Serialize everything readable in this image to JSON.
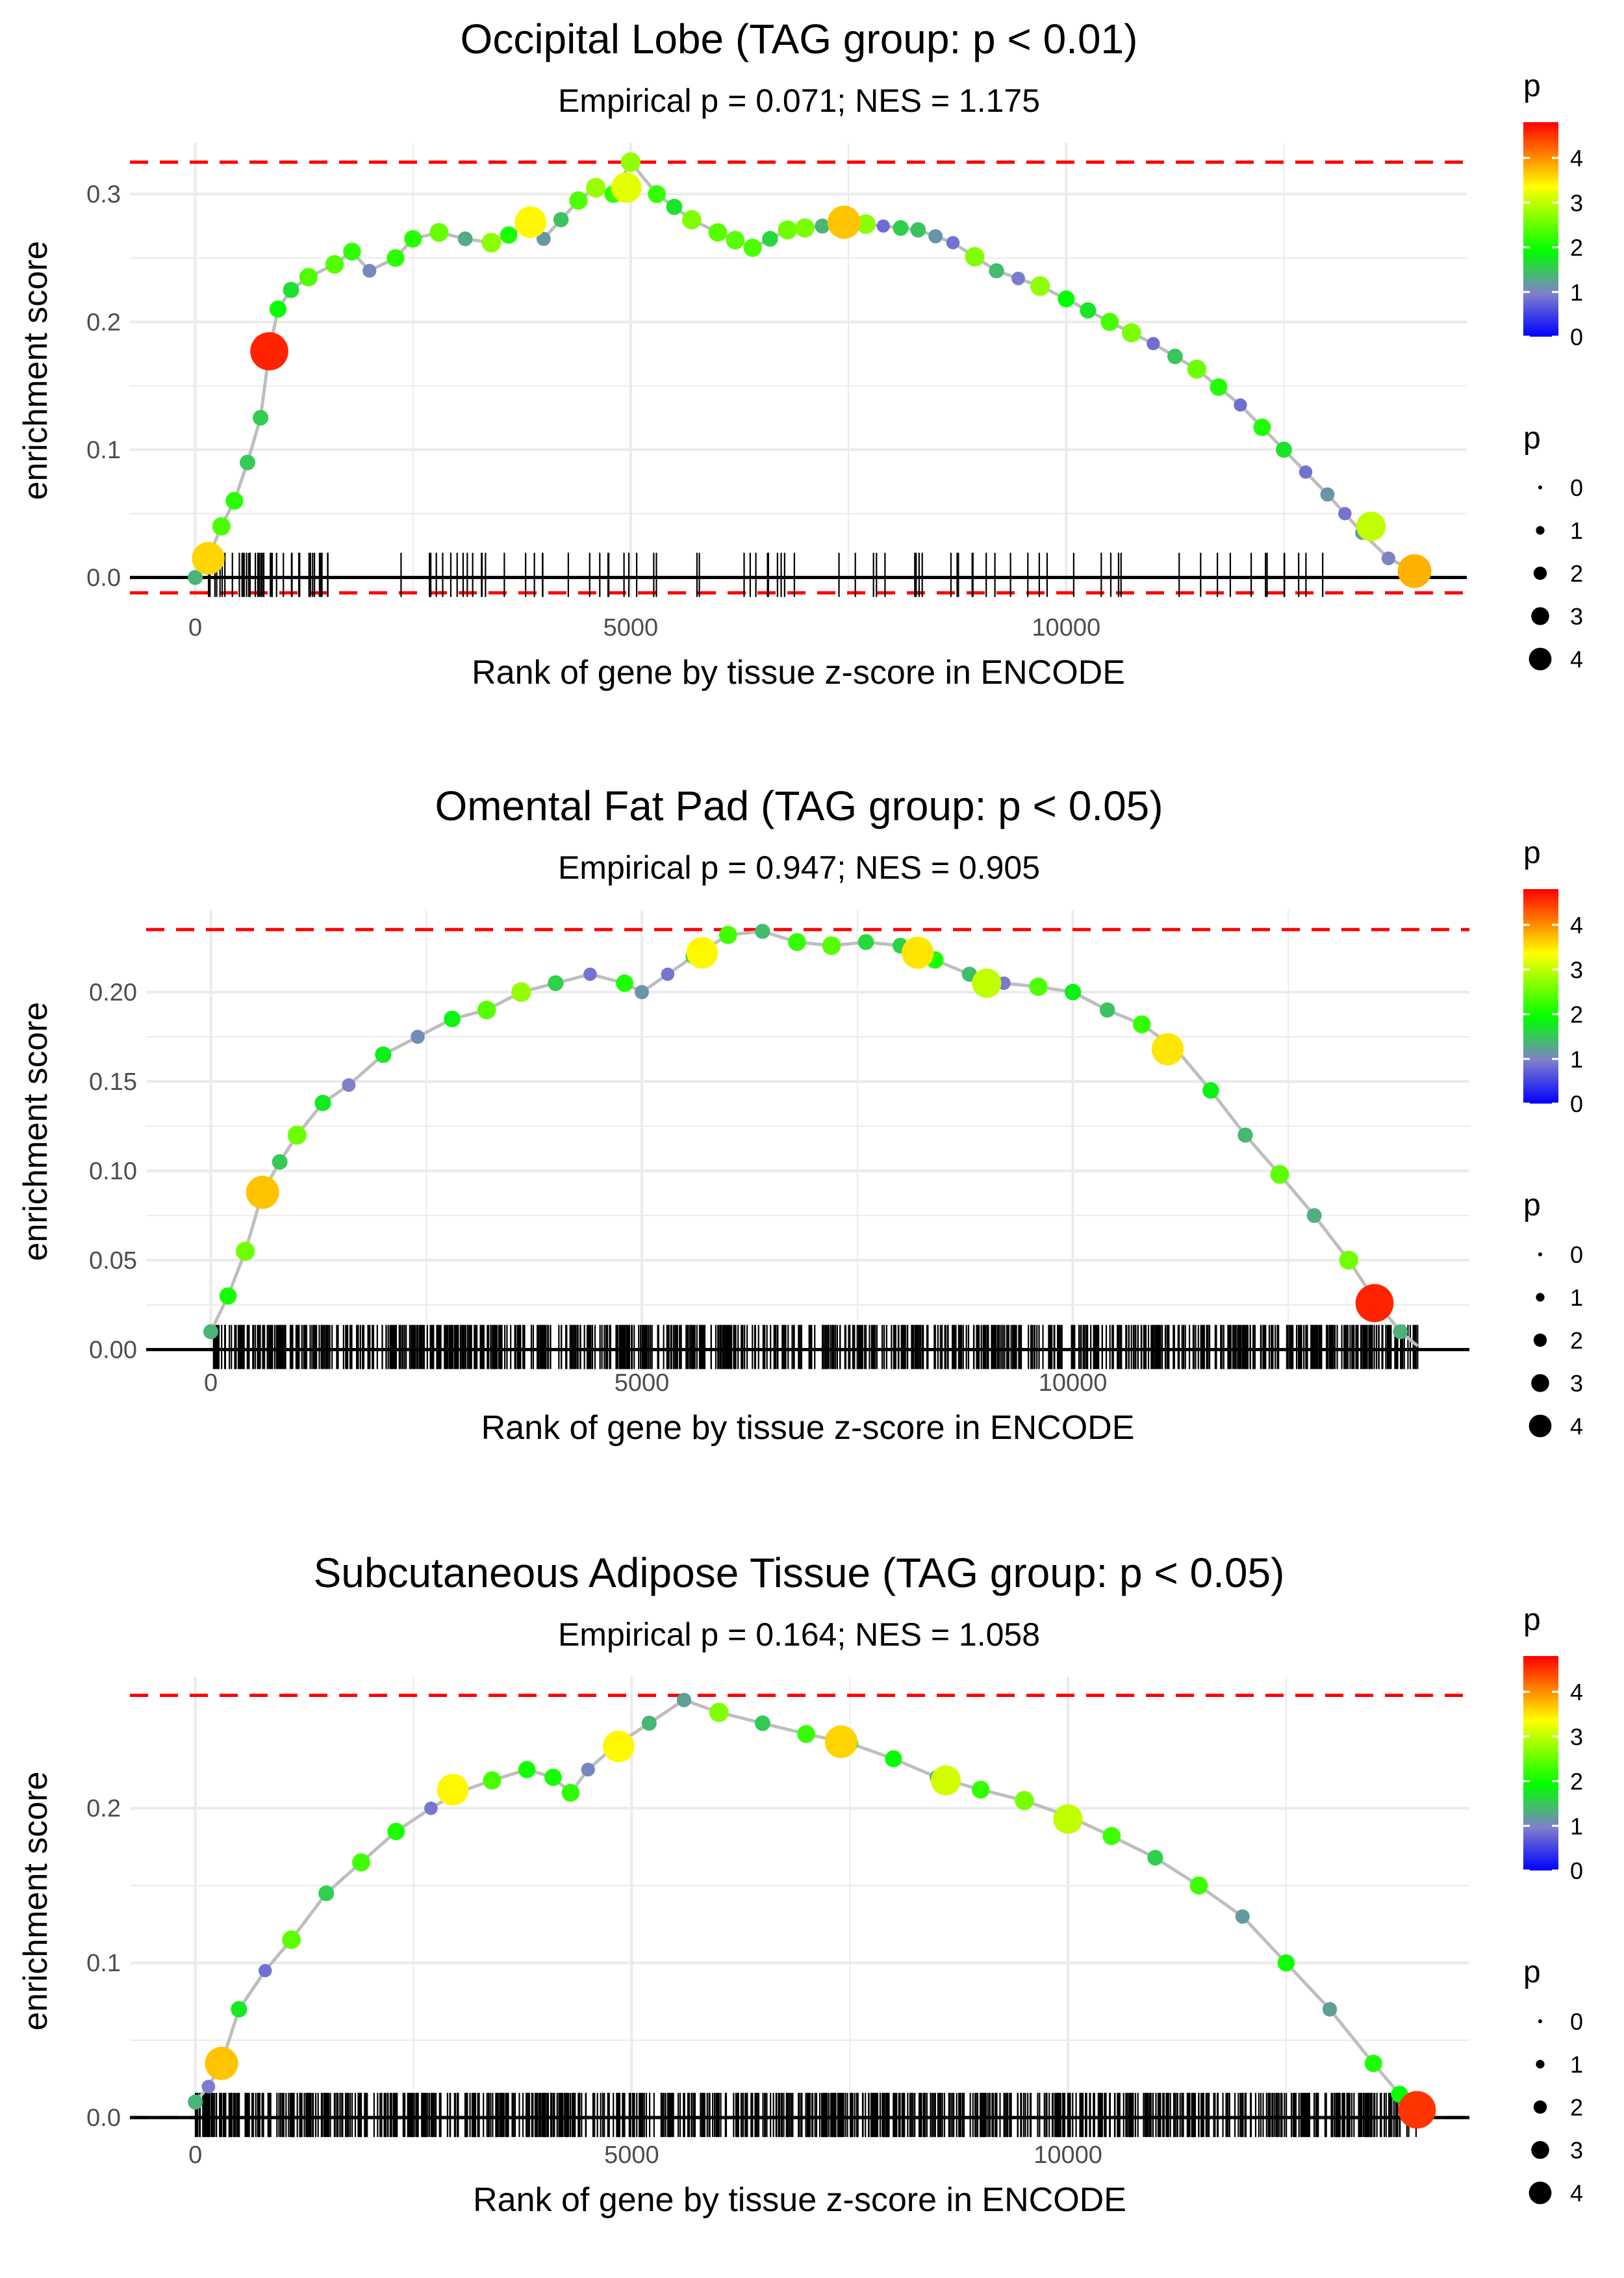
{
  "colors": {
    "gradient": [
      "#0000ff",
      "#7f7fcc",
      "#00ff00",
      "#ffff00",
      "#ff0000"
    ],
    "line": "#bebebe",
    "threshold": "#ff0000",
    "baseline": "#000000",
    "rug": "#000000",
    "grid": "#ebebeb"
  },
  "chart_data": [
    {
      "type": "scatter",
      "title": "Occipital Lobe (TAG group: p < 0.01)",
      "subtitle": "Empirical p = 0.071; NES = 1.175",
      "xlabel": "Rank of gene by tissue z-score in ENCODE",
      "ylabel": "enrichment score",
      "xlim": [
        -750,
        14600
      ],
      "ylim": [
        -0.016,
        0.34
      ],
      "xticks": [
        0,
        5000,
        10000
      ],
      "xtick_labels": [
        "0",
        "5000",
        "10000"
      ],
      "yticks": [
        0,
        0.1,
        0.2,
        0.3
      ],
      "ytick_labels": [
        "0.0",
        "0.1",
        "0.2",
        "0.3"
      ],
      "hlines": [
        0.325,
        -0.012
      ],
      "legend": {
        "color_title": "p",
        "size_title": "p",
        "color_labels": [
          "4",
          "3",
          "2",
          "1",
          "0"
        ],
        "size_labels": [
          "0",
          "1",
          "2",
          "3",
          "4"
        ]
      },
      "curve": [
        [
          0,
          0
        ],
        [
          150,
          0.015
        ],
        [
          300,
          0.04
        ],
        [
          450,
          0.06
        ],
        [
          600,
          0.09
        ],
        [
          750,
          0.125
        ],
        [
          850,
          0.177
        ],
        [
          950,
          0.21
        ],
        [
          1100,
          0.225
        ],
        [
          1300,
          0.235
        ],
        [
          1600,
          0.245
        ],
        [
          1800,
          0.255
        ],
        [
          2000,
          0.24
        ],
        [
          2300,
          0.25
        ],
        [
          2500,
          0.265
        ],
        [
          2800,
          0.27
        ],
        [
          3100,
          0.265
        ],
        [
          3400,
          0.262
        ],
        [
          3600,
          0.268
        ],
        [
          3800,
          0.275
        ],
        [
          4000,
          0.265
        ],
        [
          4200,
          0.28
        ],
        [
          4400,
          0.295
        ],
        [
          4600,
          0.305
        ],
        [
          4800,
          0.3
        ],
        [
          5000,
          0.325
        ],
        [
          5300,
          0.3
        ],
        [
          5700,
          0.28
        ],
        [
          6000,
          0.27
        ],
        [
          6400,
          0.258
        ],
        [
          6800,
          0.272
        ],
        [
          7200,
          0.275
        ],
        [
          7500,
          0.278
        ],
        [
          7900,
          0.275
        ],
        [
          8300,
          0.272
        ],
        [
          8700,
          0.262
        ],
        [
          9200,
          0.24
        ],
        [
          9700,
          0.228
        ],
        [
          10000,
          0.218
        ],
        [
          10500,
          0.2
        ],
        [
          11000,
          0.183
        ],
        [
          11500,
          0.163
        ],
        [
          12000,
          0.135
        ],
        [
          12500,
          0.1
        ],
        [
          13000,
          0.065
        ],
        [
          13400,
          0.035
        ],
        [
          13700,
          0.015
        ],
        [
          14000,
          0.005
        ]
      ],
      "highlights": [
        [
          150,
          0.015,
          3.6
        ],
        [
          850,
          0.177,
          4.6
        ],
        [
          3850,
          0.278,
          3.4
        ],
        [
          4950,
          0.305,
          3.2
        ],
        [
          7450,
          0.278,
          3.7
        ],
        [
          13500,
          0.04,
          3.0
        ],
        [
          14000,
          0.005,
          3.8
        ]
      ],
      "rug_count": 120,
      "rug_seed": 7
    },
    {
      "type": "scatter",
      "title": "Omental Fat Pad (TAG group: p < 0.05)",
      "subtitle": "Empirical p = 0.947; NES = 0.905",
      "xlabel": "Rank of gene by tissue z-score in ENCODE",
      "ylabel": "enrichment score",
      "xlim": [
        -750,
        14600
      ],
      "ylim": [
        -0.002,
        0.246
      ],
      "xticks": [
        0,
        5000,
        10000
      ],
      "xtick_labels": [
        "0",
        "5000",
        "10000"
      ],
      "yticks": [
        0,
        0.05,
        0.1,
        0.15,
        0.2
      ],
      "ytick_labels": [
        "0.00",
        "0.05",
        "0.10",
        "0.15",
        "0.20"
      ],
      "hlines": [
        0.235,
        0
      ],
      "legend": {
        "color_title": "p",
        "size_title": "p",
        "color_labels": [
          "4",
          "3",
          "2",
          "1",
          "0"
        ],
        "size_labels": [
          "0",
          "1",
          "2",
          "3",
          "4"
        ]
      },
      "curve": [
        [
          0,
          0.01
        ],
        [
          200,
          0.03
        ],
        [
          400,
          0.055
        ],
        [
          600,
          0.088
        ],
        [
          800,
          0.105
        ],
        [
          1000,
          0.12
        ],
        [
          1300,
          0.138
        ],
        [
          1600,
          0.148
        ],
        [
          2000,
          0.165
        ],
        [
          2400,
          0.175
        ],
        [
          2800,
          0.185
        ],
        [
          3200,
          0.19
        ],
        [
          3600,
          0.2
        ],
        [
          4000,
          0.205
        ],
        [
          4400,
          0.21
        ],
        [
          4800,
          0.205
        ],
        [
          5000,
          0.2
        ],
        [
          5300,
          0.21
        ],
        [
          5600,
          0.22
        ],
        [
          6000,
          0.232
        ],
        [
          6400,
          0.234
        ],
        [
          6800,
          0.228
        ],
        [
          7200,
          0.226
        ],
        [
          7600,
          0.228
        ],
        [
          8000,
          0.226
        ],
        [
          8400,
          0.218
        ],
        [
          8800,
          0.21
        ],
        [
          9200,
          0.205
        ],
        [
          9600,
          0.203
        ],
        [
          10000,
          0.2
        ],
        [
          10400,
          0.19
        ],
        [
          10800,
          0.182
        ],
        [
          11200,
          0.168
        ],
        [
          11600,
          0.145
        ],
        [
          12000,
          0.12
        ],
        [
          12400,
          0.098
        ],
        [
          12800,
          0.075
        ],
        [
          13200,
          0.05
        ],
        [
          13500,
          0.028
        ],
        [
          13800,
          0.01
        ],
        [
          14000,
          0.002
        ]
      ],
      "highlights": [
        [
          600,
          0.088,
          3.7
        ],
        [
          5700,
          0.222,
          3.4
        ],
        [
          8200,
          0.222,
          3.5
        ],
        [
          9000,
          0.205,
          3.0
        ],
        [
          11100,
          0.168,
          3.5
        ],
        [
          13500,
          0.026,
          4.6
        ]
      ],
      "rug_count": 900,
      "rug_seed": 13
    },
    {
      "type": "scatter",
      "title": "Subcutaneous Adipose Tissue (TAG group: p < 0.05)",
      "subtitle": "Empirical p = 0.164; NES = 1.058",
      "xlabel": "Rank of gene by tissue z-score in ENCODE",
      "ylabel": "enrichment score",
      "xlim": [
        -750,
        14600
      ],
      "ylim": [
        -0.005,
        0.285
      ],
      "xticks": [
        0,
        5000,
        10000
      ],
      "xtick_labels": [
        "0",
        "5000",
        "10000"
      ],
      "yticks": [
        0,
        0.1,
        0.2
      ],
      "ytick_labels": [
        "0.0",
        "0.1",
        "0.2"
      ],
      "hlines": [
        0.273,
        0
      ],
      "legend": {
        "color_title": "p",
        "size_title": "p",
        "color_labels": [
          "4",
          "3",
          "2",
          "1",
          "0"
        ],
        "size_labels": [
          "0",
          "1",
          "2",
          "3",
          "4"
        ]
      },
      "curve": [
        [
          0,
          0.01
        ],
        [
          150,
          0.02
        ],
        [
          300,
          0.035
        ],
        [
          500,
          0.07
        ],
        [
          800,
          0.095
        ],
        [
          1100,
          0.115
        ],
        [
          1500,
          0.145
        ],
        [
          1900,
          0.165
        ],
        [
          2300,
          0.185
        ],
        [
          2700,
          0.2
        ],
        [
          3000,
          0.21
        ],
        [
          3400,
          0.218
        ],
        [
          3800,
          0.225
        ],
        [
          4100,
          0.22
        ],
        [
          4300,
          0.21
        ],
        [
          4500,
          0.225
        ],
        [
          4800,
          0.24
        ],
        [
          5200,
          0.255
        ],
        [
          5600,
          0.27
        ],
        [
          6000,
          0.262
        ],
        [
          6500,
          0.255
        ],
        [
          7000,
          0.248
        ],
        [
          7500,
          0.242
        ],
        [
          8000,
          0.232
        ],
        [
          8500,
          0.22
        ],
        [
          9000,
          0.212
        ],
        [
          9500,
          0.205
        ],
        [
          10000,
          0.195
        ],
        [
          10500,
          0.182
        ],
        [
          11000,
          0.168
        ],
        [
          11500,
          0.15
        ],
        [
          12000,
          0.13
        ],
        [
          12500,
          0.1
        ],
        [
          13000,
          0.07
        ],
        [
          13500,
          0.035
        ],
        [
          13800,
          0.015
        ],
        [
          14000,
          0.005
        ]
      ],
      "highlights": [
        [
          300,
          0.035,
          3.7
        ],
        [
          2950,
          0.212,
          3.4
        ],
        [
          4850,
          0.24,
          3.4
        ],
        [
          7400,
          0.243,
          3.6
        ],
        [
          8600,
          0.218,
          3.1
        ],
        [
          10000,
          0.193,
          3.0
        ],
        [
          14000,
          0.005,
          4.5
        ]
      ],
      "rug_count": 900,
      "rug_seed": 29
    }
  ]
}
